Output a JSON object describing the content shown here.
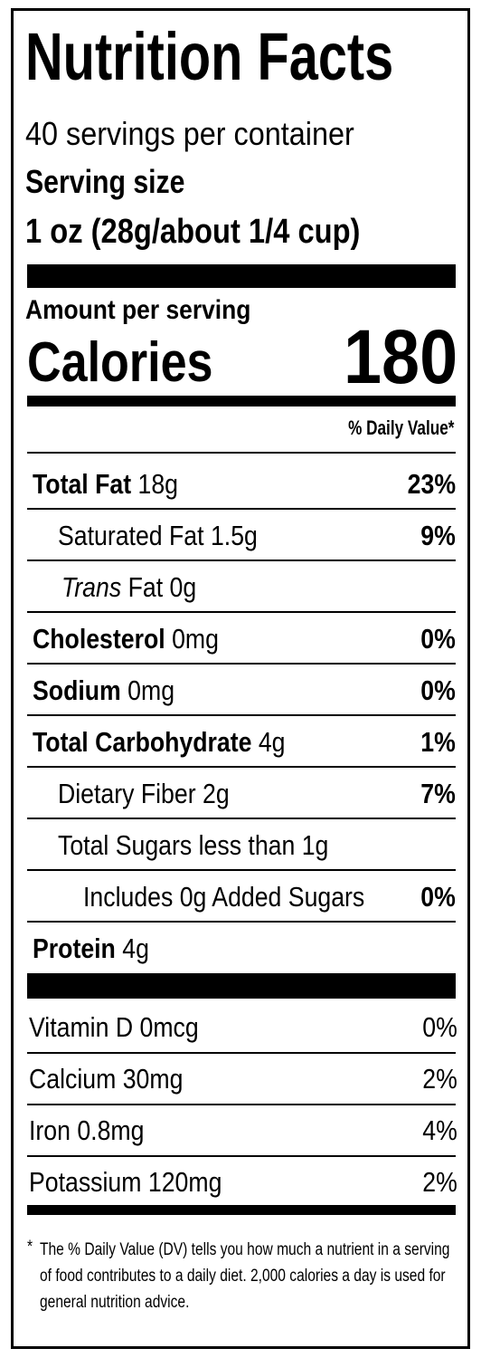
{
  "title": "Nutrition Facts",
  "servings": "40 servings per container",
  "serving_size_label": "Serving size",
  "serving_size": "1 oz (28g/about 1/4 cup)",
  "amount_per_serving": "Amount per serving",
  "calories_label": "Calories",
  "calories": "180",
  "daily_value_header": "% Daily Value*",
  "nutrients": [
    {
      "name": "Total Fat",
      "amount": "18g",
      "dv": "23%"
    },
    {
      "name": "Saturated Fat",
      "amount": "1.5g",
      "dv": "9%"
    },
    {
      "name_italic": "Trans",
      "name": "Fat",
      "amount": "0g"
    },
    {
      "name": "Cholesterol",
      "amount": "0mg",
      "dv": "0%"
    },
    {
      "name": "Sodium",
      "amount": "0mg",
      "dv": "0%"
    },
    {
      "name": "Total Carbohydrate",
      "amount": "4g",
      "dv": "1%"
    },
    {
      "name": "Dietary Fiber",
      "amount": "2g",
      "dv": "7%"
    },
    {
      "name": "Total Sugars",
      "amount": "less than 1g"
    },
    {
      "name": "Includes 0g Added Sugars",
      "dv": "0%"
    },
    {
      "name": "Protein",
      "amount": "4g"
    }
  ],
  "vitamins": [
    {
      "name": "Vitamin D",
      "amount": "0mcg",
      "dv": "0%"
    },
    {
      "name": "Calcium",
      "amount": "30mg",
      "dv": "2%"
    },
    {
      "name": "Iron",
      "amount": "0.8mg",
      "dv": "4%"
    },
    {
      "name": "Potassium",
      "amount": "120mg",
      "dv": "2%"
    }
  ],
  "footnote": {
    "mark": "*",
    "text": "The % Daily Value (DV) tells you how much a nutrient in a serving of food contributes to a daily diet. 2,000 calories a day is used for general nutrition advice."
  }
}
